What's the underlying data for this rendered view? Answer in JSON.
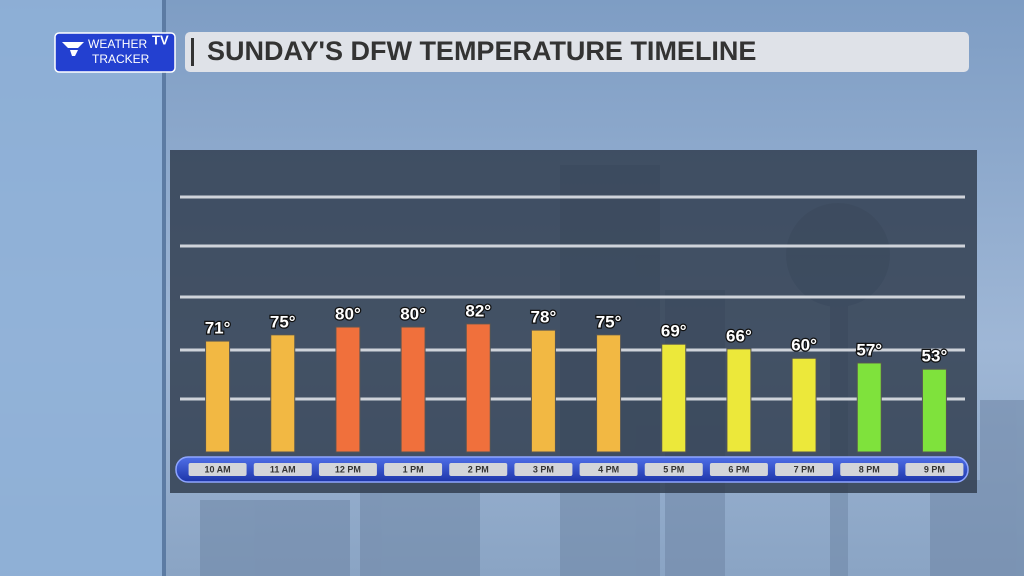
{
  "header": {
    "logo_line1": "WEATHER",
    "logo_badge": "TV",
    "logo_line2": "TRACKER"
  },
  "chart_data": {
    "type": "bar",
    "title": "SUNDAY'S DFW TEMPERATURE TIMELINE",
    "categories": [
      "10 AM",
      "11 AM",
      "12 PM",
      "1 PM",
      "2 PM",
      "3 PM",
      "4 PM",
      "5 PM",
      "6 PM",
      "7 PM",
      "8 PM",
      "9 PM"
    ],
    "values": [
      71,
      75,
      80,
      80,
      82,
      78,
      75,
      69,
      66,
      60,
      57,
      53
    ],
    "value_labels": [
      "71°",
      "75°",
      "80°",
      "80°",
      "82°",
      "78°",
      "75°",
      "69°",
      "66°",
      "60°",
      "57°",
      "53°"
    ],
    "colors": [
      "#f2b843",
      "#f2b843",
      "#f0703c",
      "#f0703c",
      "#f0703c",
      "#f2b843",
      "#f2b843",
      "#ece83a",
      "#ece83a",
      "#ece83a",
      "#7fe23c",
      "#7fe23c"
    ],
    "ylim": [
      0,
      160
    ]
  }
}
